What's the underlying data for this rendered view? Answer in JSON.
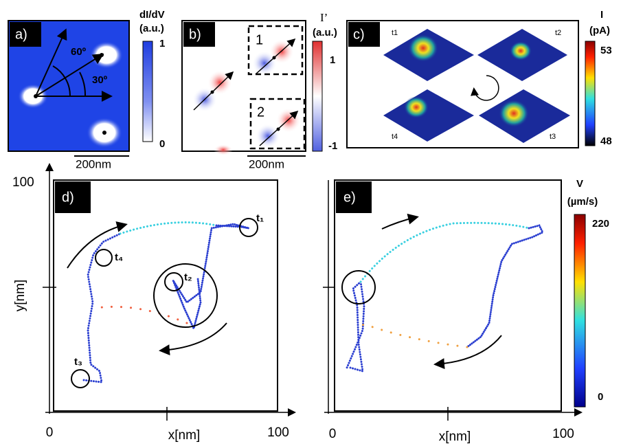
{
  "panel_a": {
    "label": "a)",
    "angle_1": "60º",
    "angle_2": "30º",
    "colorbar_title": "dI/dV",
    "colorbar_unit": "(a.u.)",
    "colorbar_max": 1,
    "colorbar_min": 0,
    "scale_bar": "200nm"
  },
  "panel_b": {
    "label": "b)",
    "inset_1": "1",
    "inset_2": "2",
    "colorbar_title": "I’",
    "colorbar_unit": "(a.u.)",
    "colorbar_max": 1,
    "colorbar_min": -1,
    "scale_bar": "200nm"
  },
  "panel_c": {
    "label": "c)",
    "frames": [
      "t1",
      "t2",
      "t4",
      "t3"
    ],
    "colorbar_title": "I",
    "colorbar_unit": "(pA)",
    "colorbar_max": 53,
    "colorbar_min": 48
  },
  "panel_d": {
    "label": "d)",
    "y_label": "y[nm]",
    "y_max": 100,
    "x_label": "x[nm]",
    "x_min": 0,
    "x_max": 100,
    "markers": [
      "t₁",
      "t₂",
      "t₃",
      "t₄"
    ]
  },
  "panel_e": {
    "label": "e)",
    "x_label": "x[nm]",
    "x_min": 0,
    "x_max": 100,
    "colorbar_title": "V",
    "colorbar_unit": "(µm/s)",
    "colorbar_max": 220,
    "colorbar_min": 0
  }
}
